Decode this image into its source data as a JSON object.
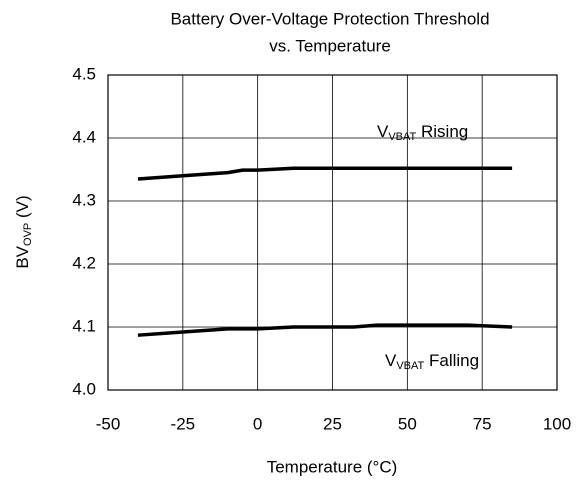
{
  "chart_data": {
    "type": "line",
    "title": [
      "Battery Over-Voltage Protection Threshold",
      "vs. Temperature"
    ],
    "x_label": "Temperature (°C)",
    "y_label": [
      "BV",
      "OVP",
      " (V)"
    ],
    "annotations": [
      {
        "parts": [
          "V",
          "VBAT",
          " Rising"
        ]
      },
      {
        "parts": [
          "V",
          "VBAT",
          "  Falling"
        ]
      }
    ],
    "xlim": [
      -50,
      100
    ],
    "xticks": [
      -50,
      -25,
      0,
      25,
      50,
      75,
      100
    ],
    "ylim": [
      4.0,
      4.5
    ],
    "yticks": [
      {
        "value": 4,
        "label": "4.0"
      },
      4.1,
      4.2,
      4.3,
      4.4,
      4.5
    ],
    "grid": true,
    "series": [
      {
        "color": "#000000",
        "x": [
          -40,
          -25,
          -10,
          -5,
          0,
          12,
          25,
          50,
          85
        ],
        "values": [
          4.335,
          4.34,
          4.345,
          4.349,
          4.349,
          4.352,
          4.352,
          4.352,
          4.352
        ]
      },
      {
        "color": "#000000",
        "x": [
          -40,
          -25,
          -10,
          0,
          12,
          32,
          40,
          70,
          85
        ],
        "values": [
          4.087,
          4.092,
          4.097,
          4.097,
          4.1,
          4.1,
          4.103,
          4.103,
          4.1
        ]
      }
    ]
  }
}
